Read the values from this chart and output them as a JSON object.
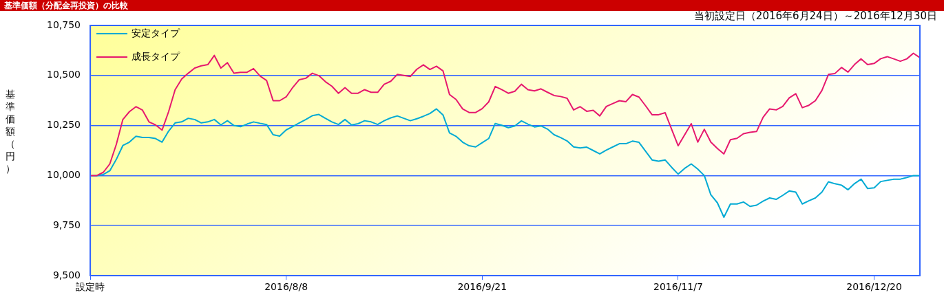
{
  "chart_data": {
    "type": "line",
    "title": "基準価額（分配金再投資）の比較",
    "ylabel": "基準価額（円）",
    "annotations": [
      "当初設定日（2016年6月24日）～2016年12月30日"
    ],
    "categories": [
      "設定時",
      null,
      null,
      null,
      null,
      null,
      null,
      null,
      null,
      null,
      null,
      null,
      null,
      null,
      null,
      null,
      null,
      null,
      null,
      null,
      null,
      null,
      null,
      null,
      null,
      null,
      null,
      null,
      null,
      null,
      "2016/8/8",
      null,
      null,
      null,
      null,
      null,
      null,
      null,
      null,
      null,
      null,
      null,
      null,
      null,
      null,
      null,
      null,
      null,
      null,
      null,
      null,
      null,
      null,
      null,
      null,
      null,
      null,
      null,
      null,
      null,
      "2016/9/21",
      null,
      null,
      null,
      null,
      null,
      null,
      null,
      null,
      null,
      null,
      null,
      null,
      null,
      null,
      null,
      null,
      null,
      null,
      null,
      null,
      null,
      null,
      null,
      null,
      null,
      null,
      null,
      null,
      null,
      "2016/11/7",
      null,
      null,
      null,
      null,
      null,
      null,
      null,
      null,
      null,
      null,
      null,
      null,
      null,
      null,
      null,
      null,
      null,
      null,
      null,
      null,
      null,
      null,
      null,
      null,
      null,
      null,
      null,
      null,
      null,
      "2016/12/20",
      null,
      null,
      null,
      null,
      null,
      null,
      null
    ],
    "series": [
      {
        "name": "安定タイプ",
        "color": "#00aad4",
        "values": [
          10000,
          10000,
          10005,
          10024,
          10081,
          10150,
          10167,
          10196,
          10190,
          10190,
          10185,
          10167,
          10222,
          10263,
          10268,
          10286,
          10280,
          10263,
          10268,
          10280,
          10253,
          10274,
          10250,
          10244,
          10257,
          10268,
          10261,
          10255,
          10204,
          10197,
          10228,
          10245,
          10263,
          10280,
          10299,
          10305,
          10286,
          10268,
          10255,
          10280,
          10253,
          10259,
          10274,
          10268,
          10255,
          10274,
          10288,
          10298,
          10286,
          10274,
          10284,
          10296,
          10310,
          10333,
          10303,
          10213,
          10196,
          10167,
          10149,
          10143,
          10164,
          10185,
          10260,
          10251,
          10239,
          10248,
          10273,
          10257,
          10243,
          10248,
          10232,
          10204,
          10190,
          10173,
          10143,
          10138,
          10142,
          10125,
          10108,
          10127,
          10143,
          10159,
          10159,
          10172,
          10166,
          10122,
          10078,
          10072,
          10078,
          10041,
          10007,
          10036,
          10058,
          10032,
          10000,
          9904,
          9864,
          9792,
          9858,
          9858,
          9868,
          9846,
          9852,
          9872,
          9888,
          9881,
          9901,
          9923,
          9917,
          9858,
          9874,
          9888,
          9917,
          9969,
          9959,
          9952,
          9929,
          9960,
          9982,
          9935,
          9939,
          9970,
          9976,
          9982,
          9982,
          9990,
          10000,
          10000
        ]
      },
      {
        "name": "成長タイプ",
        "color": "#e6186e",
        "values": [
          10000,
          10000,
          10016,
          10058,
          10156,
          10280,
          10319,
          10344,
          10327,
          10268,
          10253,
          10227,
          10319,
          10429,
          10482,
          10511,
          10537,
          10548,
          10554,
          10600,
          10537,
          10564,
          10511,
          10516,
          10516,
          10534,
          10497,
          10475,
          10374,
          10374,
          10393,
          10440,
          10479,
          10486,
          10511,
          10499,
          10469,
          10446,
          10411,
          10439,
          10411,
          10411,
          10429,
          10416,
          10416,
          10456,
          10471,
          10505,
          10500,
          10495,
          10531,
          10553,
          10530,
          10546,
          10523,
          10405,
          10380,
          10333,
          10315,
          10315,
          10334,
          10368,
          10445,
          10429,
          10411,
          10421,
          10456,
          10429,
          10423,
          10433,
          10416,
          10400,
          10395,
          10386,
          10328,
          10344,
          10321,
          10326,
          10298,
          10345,
          10360,
          10374,
          10369,
          10405,
          10392,
          10349,
          10304,
          10304,
          10314,
          10231,
          10149,
          10204,
          10259,
          10167,
          10231,
          10167,
          10135,
          10108,
          10179,
          10186,
          10209,
          10216,
          10220,
          10291,
          10333,
          10328,
          10345,
          10388,
          10409,
          10339,
          10351,
          10374,
          10425,
          10505,
          10510,
          10540,
          10517,
          10555,
          10583,
          10554,
          10560,
          10584,
          10594,
          10583,
          10571,
          10583,
          10611,
          10589
        ]
      }
    ],
    "ylim": [
      9500,
      10750
    ],
    "yticks": [
      {
        "value": 9500,
        "label": "9,500"
      },
      {
        "value": 9750,
        "label": "9,750"
      },
      {
        "value": 10000,
        "label": "10,000"
      },
      {
        "value": 10250,
        "label": "10,250"
      },
      {
        "value": 10500,
        "label": "10,500"
      },
      {
        "value": 10750,
        "label": "10,750"
      }
    ],
    "grid": "y",
    "legend": "top left",
    "marker": "none",
    "line_style": "solid"
  }
}
